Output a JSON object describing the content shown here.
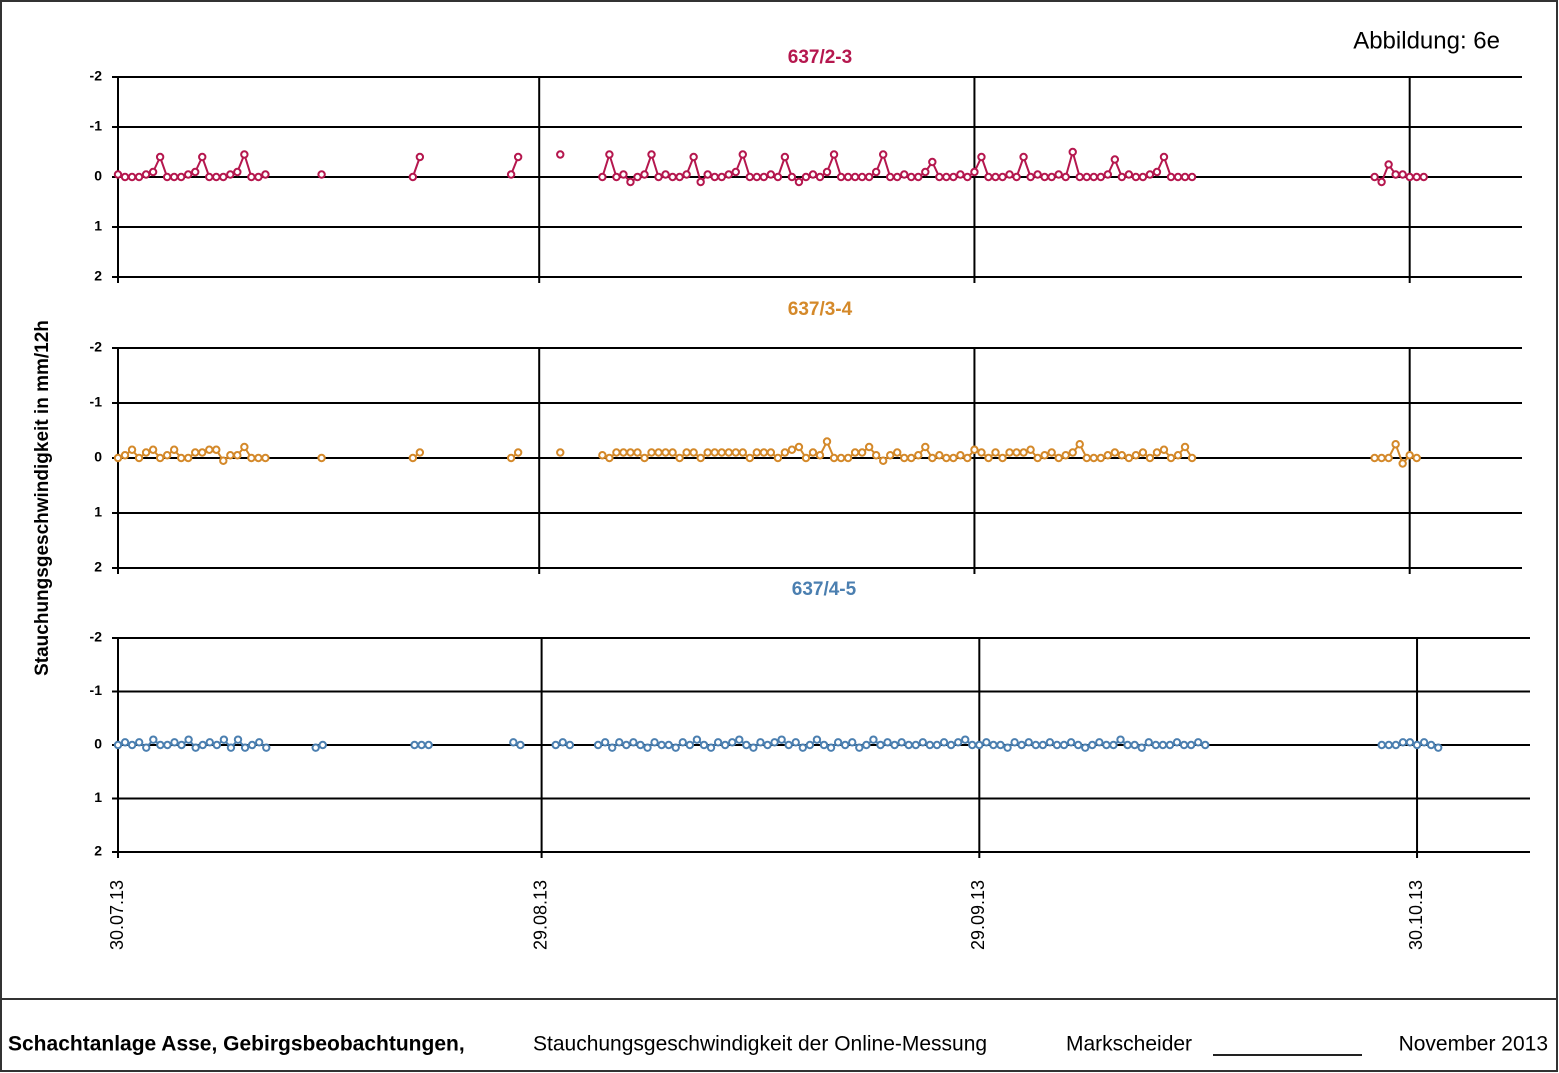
{
  "figure_label": "Abbildung: 6e",
  "y_label": "Stauchungsgeschwindigkeit in mm/12h",
  "footer": {
    "org": "Schachtanlage Asse, Gebirgsbeobachtungen,",
    "subject": "Stauchungsgeschwindigkeit der Online-Messung",
    "signature": "Markscheider",
    "date": "November 2013"
  },
  "chart_data": [
    {
      "type": "line",
      "title": "637/2-3",
      "xlim": [
        0,
        100
      ],
      "ylim": [
        2,
        -2
      ],
      "yticks": [
        -2,
        -1,
        0,
        1,
        2
      ],
      "grid": true,
      "x": [
        0,
        0.5,
        1,
        1.5,
        2,
        2.5,
        3,
        3.5,
        4,
        4.5,
        5,
        5.5,
        6,
        6.5,
        7,
        7.5,
        8,
        8.5,
        9,
        9.5,
        10,
        10.5,
        12,
        14,
        14.5,
        17,
        21,
        21.5,
        22,
        25,
        28,
        28.5,
        30,
        31,
        31.5,
        32,
        33,
        34,
        34.5,
        35,
        35.5,
        36,
        36.5,
        37,
        37.5,
        38,
        38.5,
        39,
        39.5,
        40,
        40.5,
        41,
        41.5,
        42,
        42.5,
        43,
        43.5,
        44,
        44.5,
        45,
        45.5,
        46,
        46.5,
        47,
        47.5,
        48,
        48.5,
        49,
        49.5,
        50,
        50.5,
        51,
        51.5,
        52,
        52.5,
        53,
        53.5,
        54,
        54.5,
        55,
        55.5,
        56,
        56.5,
        57,
        57.5,
        58,
        58.5,
        59,
        59.5,
        60,
        60.5,
        61,
        61.5,
        62,
        62.5,
        63,
        63.5,
        64,
        64.5,
        65,
        65.5,
        66,
        66.5,
        67,
        67.5,
        68,
        68.5,
        69,
        69.5,
        70,
        70.5,
        71,
        71.5,
        72,
        72.5,
        73,
        73.5,
        74,
        74.5,
        75,
        75.5,
        76,
        76.5,
        77,
        83,
        89.5,
        90,
        90.5,
        91,
        91.5,
        92,
        92.5,
        93,
        93.5
      ],
      "series": [
        {
          "color": "#b5174e",
          "values": [
            -0.05,
            0,
            0,
            0,
            -0.05,
            -0.1,
            -0.4,
            0,
            0,
            0,
            -0.05,
            -0.1,
            -0.4,
            0,
            0,
            0,
            -0.05,
            -0.1,
            -0.45,
            0,
            0,
            -0.05,
            null,
            null,
            -0.05,
            null,
            0,
            -0.4,
            null,
            null,
            -0.05,
            -0.4,
            null,
            null,
            -0.45,
            null,
            null,
            null,
            0,
            -0.45,
            0,
            -0.05,
            0.1,
            0,
            -0.05,
            -0.45,
            0,
            -0.05,
            0,
            0,
            -0.05,
            -0.4,
            0.1,
            -0.05,
            0,
            0,
            -0.05,
            -0.1,
            -0.45,
            0,
            0,
            0,
            -0.05,
            0,
            -0.4,
            0,
            0.1,
            0,
            -0.05,
            0,
            -0.1,
            -0.45,
            0,
            0,
            0,
            0,
            0,
            -0.1,
            -0.45,
            0,
            0,
            -0.05,
            0,
            0,
            -0.1,
            -0.3,
            0,
            0,
            0,
            -0.05,
            0,
            -0.1,
            -0.4,
            0,
            0,
            0,
            -0.05,
            0,
            -0.4,
            0,
            -0.05,
            0,
            0,
            -0.05,
            0,
            -0.5,
            0,
            0,
            0,
            0,
            -0.05,
            -0.35,
            0,
            -0.05,
            0,
            0,
            -0.05,
            -0.1,
            -0.4,
            0,
            0,
            0,
            0,
            null,
            null,
            0,
            0.1,
            -0.25,
            -0.05,
            -0.05,
            0,
            0,
            0,
            null
          ]
        }
      ]
    },
    {
      "type": "line",
      "title": "637/3-4",
      "xlim": [
        0,
        100
      ],
      "ylim": [
        2,
        -2
      ],
      "yticks": [
        -2,
        -1,
        0,
        1,
        2
      ],
      "grid": true,
      "x": [
        0,
        0.5,
        1,
        1.5,
        2,
        2.5,
        3,
        3.5,
        4,
        4.5,
        5,
        5.5,
        6,
        6.5,
        7,
        7.5,
        8,
        8.5,
        9,
        9.5,
        10,
        10.5,
        12,
        14,
        14.5,
        17,
        21,
        21.5,
        22,
        25,
        28,
        28.5,
        30,
        31,
        31.5,
        32,
        33,
        34,
        34.5,
        35,
        35.5,
        36,
        36.5,
        37,
        37.5,
        38,
        38.5,
        39,
        39.5,
        40,
        40.5,
        41,
        41.5,
        42,
        42.5,
        43,
        43.5,
        44,
        44.5,
        45,
        45.5,
        46,
        46.5,
        47,
        47.5,
        48,
        48.5,
        49,
        49.5,
        50,
        50.5,
        51,
        51.5,
        52,
        52.5,
        53,
        53.5,
        54,
        54.5,
        55,
        55.5,
        56,
        56.5,
        57,
        57.5,
        58,
        58.5,
        59,
        59.5,
        60,
        60.5,
        61,
        61.5,
        62,
        62.5,
        63,
        63.5,
        64,
        64.5,
        65,
        65.5,
        66,
        66.5,
        67,
        67.5,
        68,
        68.5,
        69,
        69.5,
        70,
        70.5,
        71,
        71.5,
        72,
        72.5,
        73,
        73.5,
        74,
        74.5,
        75,
        75.5,
        76,
        76.5,
        77,
        83,
        89.5,
        90,
        90.5,
        91,
        91.5,
        92,
        92.5,
        93,
        93.5
      ],
      "series": [
        {
          "color": "#d4892a",
          "values": [
            0,
            -0.05,
            -0.15,
            0,
            -0.1,
            -0.15,
            0,
            -0.05,
            -0.15,
            0,
            0,
            -0.1,
            -0.1,
            -0.15,
            -0.15,
            0.05,
            -0.05,
            -0.05,
            -0.2,
            0,
            0,
            0,
            null,
            null,
            0,
            null,
            0,
            -0.1,
            null,
            null,
            0,
            -0.1,
            null,
            null,
            -0.1,
            null,
            null,
            null,
            -0.05,
            0,
            -0.1,
            -0.1,
            -0.1,
            -0.1,
            0,
            -0.1,
            -0.1,
            -0.1,
            -0.1,
            0,
            -0.1,
            -0.1,
            0,
            -0.1,
            -0.1,
            -0.1,
            -0.1,
            -0.1,
            -0.1,
            0,
            -0.1,
            -0.1,
            -0.1,
            0,
            -0.1,
            -0.15,
            -0.2,
            0,
            -0.1,
            -0.05,
            -0.3,
            0,
            0,
            0,
            -0.1,
            -0.1,
            -0.2,
            -0.05,
            0.05,
            -0.05,
            -0.1,
            0,
            0,
            -0.05,
            -0.2,
            0,
            -0.05,
            0,
            0,
            -0.05,
            0,
            -0.15,
            -0.1,
            0,
            -0.1,
            0,
            -0.1,
            -0.1,
            -0.1,
            -0.15,
            0,
            -0.05,
            -0.1,
            0,
            -0.05,
            -0.1,
            -0.25,
            0,
            0,
            0,
            -0.05,
            -0.1,
            -0.05,
            0,
            -0.05,
            -0.1,
            0,
            -0.1,
            -0.15,
            0,
            -0.05,
            -0.2,
            0,
            null,
            null,
            0,
            0,
            0,
            -0.25,
            0.1,
            -0.05,
            0,
            null,
            null
          ]
        }
      ]
    },
    {
      "type": "line",
      "title": "637/4-5",
      "xlim": [
        0,
        100
      ],
      "ylim": [
        2,
        -2
      ],
      "yticks": [
        -2,
        -1,
        0,
        1,
        2
      ],
      "grid": true,
      "xticks": [
        {
          "value": 0,
          "label": "30.07.13"
        },
        {
          "value": 30,
          "label": "29.08.13"
        },
        {
          "value": 61,
          "label": "29.09.13"
        },
        {
          "value": 92,
          "label": "30.10.13"
        }
      ],
      "x": [
        0,
        0.5,
        1,
        1.5,
        2,
        2.5,
        3,
        3.5,
        4,
        4.5,
        5,
        5.5,
        6,
        6.5,
        7,
        7.5,
        8,
        8.5,
        9,
        9.5,
        10,
        10.5,
        12,
        14,
        14.5,
        17,
        21,
        21.5,
        22,
        25,
        28,
        28.5,
        30,
        31,
        31.5,
        32,
        33,
        34,
        34.5,
        35,
        35.5,
        36,
        36.5,
        37,
        37.5,
        38,
        38.5,
        39,
        39.5,
        40,
        40.5,
        41,
        41.5,
        42,
        42.5,
        43,
        43.5,
        44,
        44.5,
        45,
        45.5,
        46,
        46.5,
        47,
        47.5,
        48,
        48.5,
        49,
        49.5,
        50,
        50.5,
        51,
        51.5,
        52,
        52.5,
        53,
        53.5,
        54,
        54.5,
        55,
        55.5,
        56,
        56.5,
        57,
        57.5,
        58,
        58.5,
        59,
        59.5,
        60,
        60.5,
        61,
        61.5,
        62,
        62.5,
        63,
        63.5,
        64,
        64.5,
        65,
        65.5,
        66,
        66.5,
        67,
        67.5,
        68,
        68.5,
        69,
        69.5,
        70,
        70.5,
        71,
        71.5,
        72,
        72.5,
        73,
        73.5,
        74,
        74.5,
        75,
        75.5,
        76,
        76.5,
        77,
        83,
        89.5,
        90,
        90.5,
        91,
        91.5,
        92,
        92.5,
        93,
        93.5
      ],
      "series": [
        {
          "color": "#4b7fb0",
          "values": [
            0,
            -0.05,
            0,
            -0.05,
            0.05,
            -0.1,
            0,
            0,
            -0.05,
            0,
            -0.1,
            0.05,
            0,
            -0.05,
            0,
            -0.1,
            0.05,
            -0.1,
            0.05,
            0,
            -0.05,
            0.05,
            null,
            0.05,
            0,
            null,
            0,
            0,
            0,
            null,
            -0.05,
            0,
            null,
            0,
            -0.05,
            0,
            null,
            0,
            -0.05,
            0.05,
            -0.05,
            0,
            -0.05,
            0,
            0.05,
            -0.05,
            0,
            0,
            0.05,
            -0.05,
            0,
            -0.1,
            0,
            0.05,
            -0.05,
            0,
            -0.05,
            -0.1,
            0,
            0.05,
            -0.05,
            0,
            -0.05,
            -0.1,
            0,
            -0.05,
            0.05,
            0,
            -0.1,
            0,
            0.05,
            -0.05,
            0,
            -0.05,
            0.05,
            0,
            -0.1,
            0,
            -0.05,
            0,
            -0.05,
            0,
            0,
            -0.05,
            0,
            0,
            -0.05,
            0,
            -0.05,
            -0.1,
            0,
            0,
            -0.05,
            0,
            0,
            0.05,
            -0.05,
            0,
            -0.05,
            0,
            0,
            -0.05,
            0,
            0,
            -0.05,
            0,
            0.05,
            0,
            -0.05,
            0,
            0,
            -0.1,
            0,
            0,
            0.05,
            -0.05,
            0,
            0,
            0,
            -0.05,
            0,
            0,
            -0.05,
            0,
            null,
            0,
            0,
            0,
            -0.05,
            -0.05,
            0,
            -0.05,
            0,
            0.05
          ]
        }
      ]
    }
  ]
}
